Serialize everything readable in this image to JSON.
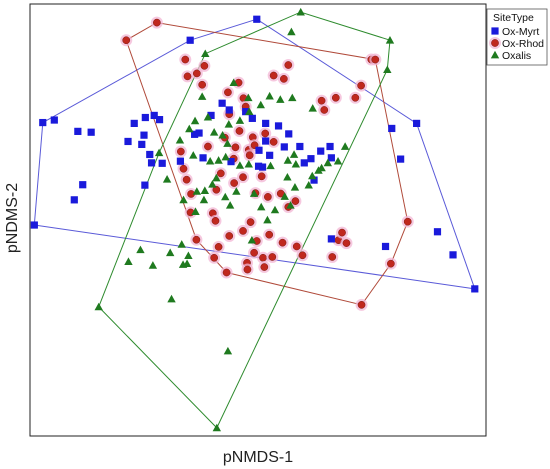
{
  "chart_data": {
    "type": "scatter",
    "title": "",
    "xlabel": "pNMDS-1",
    "ylabel": "pNDMS-2",
    "xlim": [
      0,
      100
    ],
    "ylim": [
      0,
      100
    ],
    "grid": false,
    "legend": {
      "title": "SiteType",
      "placement": "top-right",
      "entries": [
        {
          "label": "Ox-Myrt",
          "marker": "square",
          "color": "#1a1adb"
        },
        {
          "label": "Ox-Rhod",
          "marker": "circle",
          "color": "#c0281e"
        },
        {
          "label": "Oxalis",
          "marker": "triangle",
          "color": "#1f7a1f"
        }
      ]
    },
    "series": [
      {
        "name": "Ox-Myrt",
        "marker": "square",
        "color": "#1a1adb",
        "hull_color": "#5a5ad8",
        "points": [
          [
            50.4,
            97.8
          ],
          [
            35.4,
            92.8
          ],
          [
            2.2,
            73.2
          ],
          [
            4.8,
            73.8
          ],
          [
            10.1,
            71.1
          ],
          [
            13.1,
            70.9
          ],
          [
            21.4,
            68.7
          ],
          [
            22.8,
            73.0
          ],
          [
            25.3,
            74.4
          ],
          [
            27.3,
            74.9
          ],
          [
            28.5,
            73.9
          ],
          [
            25.0,
            70.2
          ],
          [
            24.5,
            68.0
          ],
          [
            26.3,
            65.6
          ],
          [
            26.7,
            63.6
          ],
          [
            11.2,
            58.4
          ],
          [
            9.3,
            54.8
          ],
          [
            0.3,
            48.8
          ],
          [
            25.2,
            58.3
          ],
          [
            33.2,
            64.0
          ],
          [
            36.4,
            70.4
          ],
          [
            40.1,
            74.9
          ],
          [
            42.6,
            77.8
          ],
          [
            44.2,
            76.2
          ],
          [
            47.9,
            75.8
          ],
          [
            49.4,
            74.2
          ],
          [
            52.4,
            73.0
          ],
          [
            55.3,
            72.4
          ],
          [
            52.4,
            68.8
          ],
          [
            50.9,
            66.6
          ],
          [
            53.3,
            65.4
          ],
          [
            56.6,
            67.4
          ],
          [
            57.6,
            70.5
          ],
          [
            60.1,
            67.5
          ],
          [
            61.1,
            63.6
          ],
          [
            62.6,
            64.6
          ],
          [
            64.8,
            66.4
          ],
          [
            67.2,
            64.8
          ],
          [
            63.3,
            59.5
          ],
          [
            50.8,
            62.8
          ],
          [
            51.7,
            62.6
          ],
          [
            44.6,
            63.9
          ],
          [
            38.3,
            64.8
          ],
          [
            37.4,
            70.7
          ],
          [
            67.2,
            45.5
          ],
          [
            66.9,
            67.5
          ],
          [
            80.8,
            71.8
          ],
          [
            82.8,
            64.5
          ],
          [
            86.4,
            73.0
          ],
          [
            91.1,
            47.2
          ],
          [
            94.6,
            41.7
          ],
          [
            99.5,
            33.6
          ],
          [
            79.4,
            43.7
          ],
          [
            29.1,
            63.5
          ]
        ]
      },
      {
        "name": "Ox-Rhod",
        "marker": "circle",
        "color": "#c0281e",
        "hull_color": "#b04a3a",
        "points": [
          [
            27.9,
            97.0
          ],
          [
            21.0,
            92.8
          ],
          [
            34.3,
            88.2
          ],
          [
            34.8,
            84.2
          ],
          [
            36.9,
            84.9
          ],
          [
            38.1,
            82.2
          ],
          [
            38.6,
            86.7
          ],
          [
            46.3,
            82.7
          ],
          [
            47.4,
            79.0
          ],
          [
            47.9,
            77.0
          ],
          [
            54.2,
            84.4
          ],
          [
            56.5,
            83.6
          ],
          [
            57.5,
            86.9
          ],
          [
            65.0,
            78.4
          ],
          [
            65.6,
            76.2
          ],
          [
            68.2,
            79.1
          ],
          [
            72.6,
            79.1
          ],
          [
            73.9,
            82.0
          ],
          [
            76.2,
            88.2
          ],
          [
            77.1,
            88.2
          ],
          [
            43.9,
            80.4
          ],
          [
            44.2,
            75.2
          ],
          [
            46.5,
            71.2
          ],
          [
            49.5,
            69.7
          ],
          [
            45.6,
            67.3
          ],
          [
            48.6,
            66.7
          ],
          [
            43.2,
            69.6
          ],
          [
            52.3,
            70.6
          ],
          [
            54.2,
            68.6
          ],
          [
            49.9,
            67.8
          ],
          [
            48.8,
            65.4
          ],
          [
            39.4,
            67.5
          ],
          [
            33.3,
            66.3
          ],
          [
            33.9,
            62.2
          ],
          [
            34.6,
            59.6
          ],
          [
            35.6,
            56.2
          ],
          [
            42.3,
            61.1
          ],
          [
            45.3,
            58.8
          ],
          [
            47.3,
            60.2
          ],
          [
            51.5,
            60.4
          ],
          [
            50.1,
            56.4
          ],
          [
            52.9,
            55.5
          ],
          [
            55.8,
            56.3
          ],
          [
            57.5,
            53.1
          ],
          [
            59.1,
            54.5
          ],
          [
            40.5,
            51.6
          ],
          [
            41.1,
            49.8
          ],
          [
            44.2,
            46.2
          ],
          [
            47.3,
            47.4
          ],
          [
            49.0,
            49.5
          ],
          [
            50.4,
            45.0
          ],
          [
            51.8,
            41.0
          ],
          [
            53.2,
            46.5
          ],
          [
            56.2,
            44.6
          ],
          [
            59.4,
            43.7
          ],
          [
            60.7,
            41.6
          ],
          [
            49.8,
            42.2
          ],
          [
            41.8,
            43.6
          ],
          [
            40.8,
            41.0
          ],
          [
            48.2,
            39.8
          ],
          [
            48.3,
            38.2
          ],
          [
            43.6,
            37.5
          ],
          [
            52.1,
            38.8
          ],
          [
            53.9,
            41.2
          ],
          [
            68.8,
            45.2
          ],
          [
            69.6,
            47.0
          ],
          [
            70.6,
            44.5
          ],
          [
            67.4,
            41.2
          ],
          [
            84.4,
            49.6
          ],
          [
            80.6,
            39.6
          ],
          [
            74.0,
            29.8
          ],
          [
            36.8,
            45.3
          ],
          [
            35.5,
            51.8
          ],
          [
            41.3,
            57.2
          ],
          [
            45.2,
            64.6
          ]
        ]
      },
      {
        "name": "Oxalis",
        "marker": "triangle",
        "color": "#1f7a1f",
        "hull_color": "#2e8b2e",
        "points": [
          [
            60.3,
            99.5
          ],
          [
            80.4,
            92.8
          ],
          [
            79.8,
            85.8
          ],
          [
            58.2,
            94.8
          ],
          [
            38.8,
            89.6
          ],
          [
            45.2,
            82.7
          ],
          [
            48.5,
            79.1
          ],
          [
            53.3,
            79.5
          ],
          [
            55.7,
            78.7
          ],
          [
            58.4,
            79.1
          ],
          [
            63.0,
            76.6
          ],
          [
            51.3,
            77.4
          ],
          [
            48.7,
            75.8
          ],
          [
            46.6,
            73.7
          ],
          [
            44.1,
            72.8
          ],
          [
            38.1,
            79.4
          ],
          [
            39.4,
            74.5
          ],
          [
            36.5,
            73.6
          ],
          [
            35.2,
            71.7
          ],
          [
            40.8,
            70.9
          ],
          [
            42.7,
            70.2
          ],
          [
            43.8,
            68.2
          ],
          [
            33.1,
            69.0
          ],
          [
            36.1,
            65.4
          ],
          [
            39.9,
            64.0
          ],
          [
            41.8,
            64.2
          ],
          [
            43.4,
            65.0
          ],
          [
            46.6,
            63.0
          ],
          [
            48.6,
            63.3
          ],
          [
            53.5,
            62.9
          ],
          [
            57.4,
            64.2
          ],
          [
            58.8,
            65.6
          ],
          [
            59.2,
            63.3
          ],
          [
            66.4,
            63.6
          ],
          [
            62.9,
            60.5
          ],
          [
            64.3,
            61.8
          ],
          [
            65.0,
            62.4
          ],
          [
            68.7,
            64.0
          ],
          [
            70.3,
            67.5
          ],
          [
            41.3,
            60.0
          ],
          [
            40.4,
            58.5
          ],
          [
            38.7,
            57.0
          ],
          [
            36.9,
            56.8
          ],
          [
            33.9,
            54.8
          ],
          [
            36.6,
            52.0
          ],
          [
            38.5,
            54.8
          ],
          [
            43.3,
            55.5
          ],
          [
            44.4,
            53.5
          ],
          [
            45.8,
            56.8
          ],
          [
            49.8,
            56.3
          ],
          [
            51.4,
            53.1
          ],
          [
            54.5,
            52.4
          ],
          [
            56.7,
            55.6
          ],
          [
            58.0,
            53.5
          ],
          [
            59.0,
            57.8
          ],
          [
            33.5,
            44.2
          ],
          [
            35.0,
            41.5
          ],
          [
            34.7,
            39.6
          ],
          [
            33.8,
            39.4
          ],
          [
            24.2,
            42.9
          ],
          [
            21.5,
            40.1
          ],
          [
            27.0,
            39.2
          ],
          [
            30.9,
            42.2
          ],
          [
            31.2,
            31.2
          ],
          [
            14.8,
            29.3
          ],
          [
            43.9,
            18.8
          ],
          [
            41.4,
            0.5
          ],
          [
            49.3,
            45.2
          ],
          [
            52.8,
            50.0
          ],
          [
            62.1,
            58.3
          ],
          [
            57.3,
            60.2
          ],
          [
            28.4,
            66.0
          ],
          [
            30.2,
            59.7
          ]
        ]
      }
    ]
  }
}
